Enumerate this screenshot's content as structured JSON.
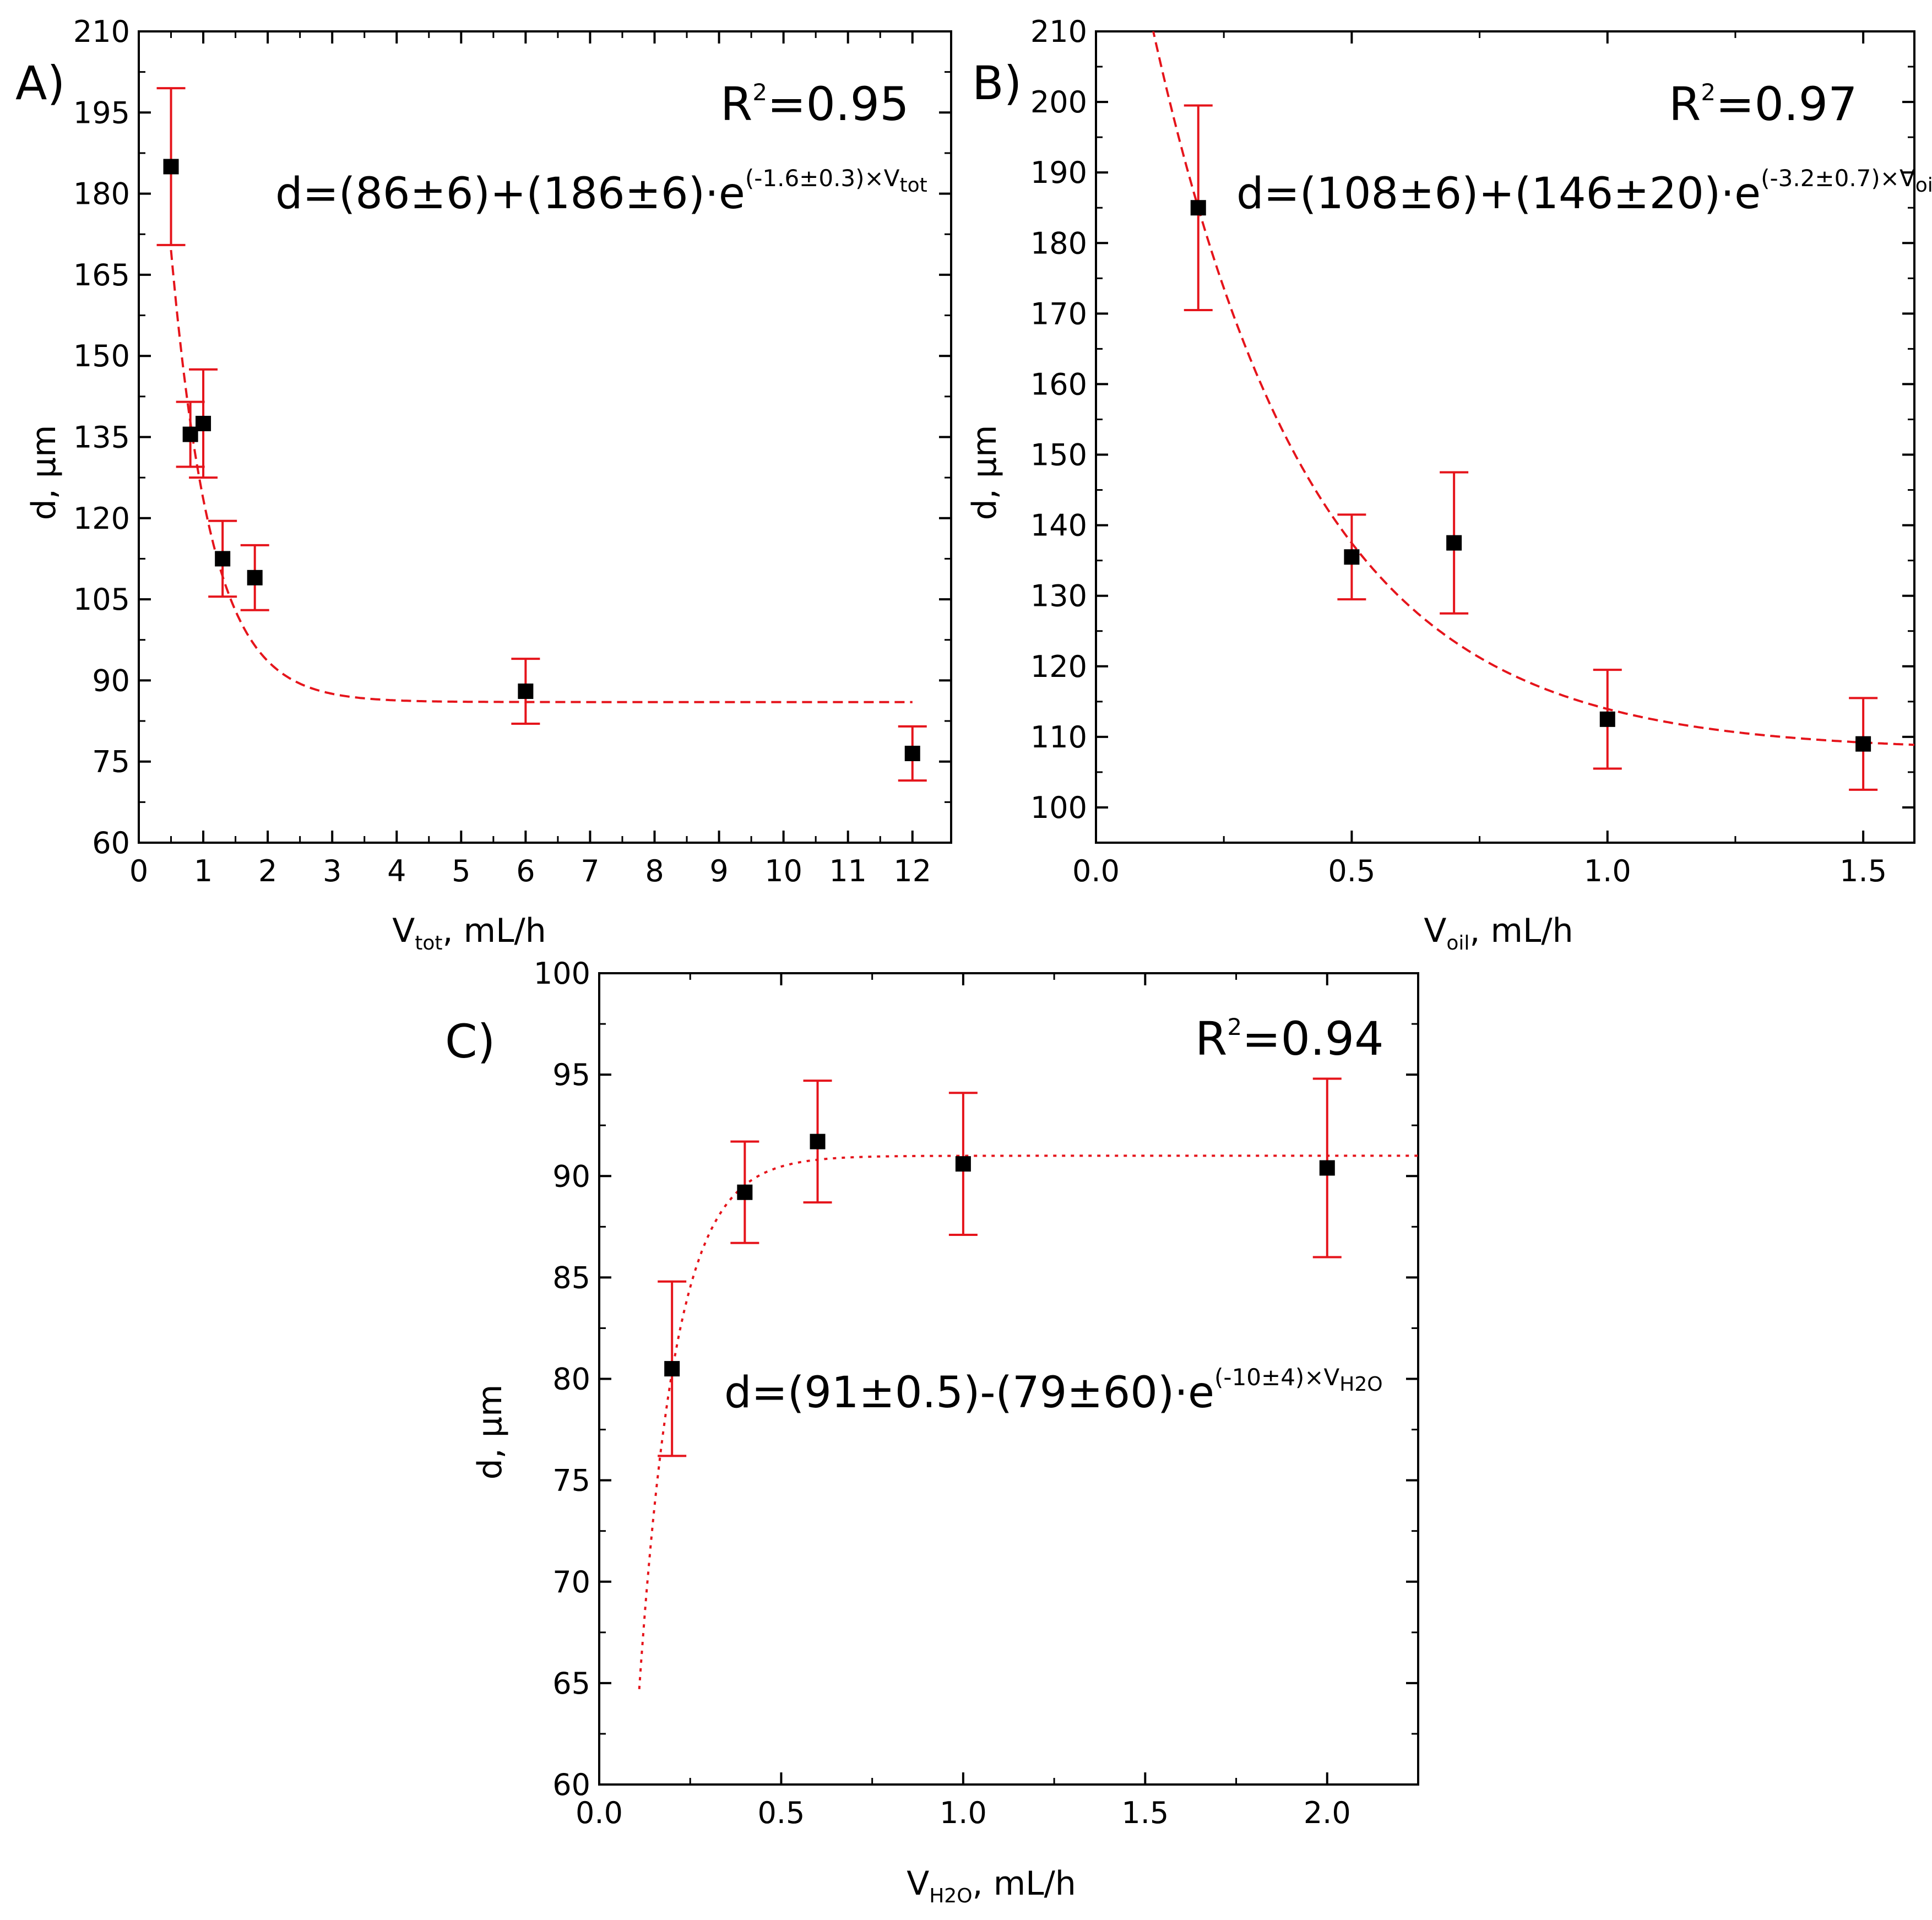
{
  "chart_data": [
    {
      "panel": "A)",
      "type": "scatter",
      "xlabel": {
        "main": "V",
        "sub": "tot",
        "rest": ", mL/h"
      },
      "ylabel": "d, µm",
      "xlim": [
        0,
        12.6
      ],
      "ylim": [
        60,
        210
      ],
      "xticks": [
        0,
        1,
        2,
        3,
        4,
        5,
        6,
        7,
        8,
        9,
        10,
        11,
        12
      ],
      "yticks": [
        60,
        75,
        90,
        105,
        120,
        135,
        150,
        165,
        180,
        195,
        210
      ],
      "series": [
        {
          "name": "data",
          "x": [
            0.5,
            0.8,
            1.0,
            1.3,
            1.8,
            6.0,
            12.0
          ],
          "y": [
            185,
            135.5,
            137.5,
            112.5,
            109,
            88,
            76.5
          ],
          "err": [
            14.5,
            6,
            10,
            7,
            6,
            6,
            5
          ]
        }
      ],
      "fit": {
        "style": "dashed",
        "kind": "exp_decay",
        "a": 86,
        "b": 186,
        "k": 1.6,
        "x_from": 0.5,
        "x_to": 12.0
      },
      "r2": {
        "prefix": "R",
        "sup": "2",
        "value": "=0.95"
      },
      "equation": {
        "base": "d=(86±6)+(186±6)·e",
        "exp": "(-1.6±0.3)×V",
        "exp_sub": "tot"
      }
    },
    {
      "panel": "B)",
      "type": "scatter",
      "xlabel": {
        "main": "V",
        "sub": "oil",
        "rest": ", mL/h"
      },
      "ylabel": "d, µm",
      "xlim": [
        0.0,
        1.6
      ],
      "ylim": [
        95,
        210
      ],
      "xticks": [
        "0.0",
        "0.5",
        "1.0",
        "1.5"
      ],
      "yticks": [
        100,
        110,
        120,
        130,
        140,
        150,
        160,
        170,
        180,
        190,
        200,
        210
      ],
      "series": [
        {
          "name": "data",
          "x": [
            0.2,
            0.5,
            0.7,
            1.0,
            1.5
          ],
          "y": [
            185,
            135.5,
            137.5,
            112.5,
            109
          ],
          "err": [
            14.5,
            6,
            10,
            7,
            6.5
          ]
        }
      ],
      "fit": {
        "style": "dashed",
        "kind": "exp_decay",
        "a": 108,
        "b": 146,
        "k": 3.2,
        "x_from": 0.02,
        "x_to": 1.6
      },
      "r2": {
        "prefix": "R",
        "sup": "2",
        "value": "=0.97"
      },
      "equation": {
        "base": "d=(108±6)+(146±20)·e",
        "exp": "(-3.2±0.7)×V",
        "exp_sub": "oil"
      }
    },
    {
      "panel": "C)",
      "type": "scatter",
      "xlabel": {
        "main": "V",
        "sub": "H2O",
        "rest": ", mL/h"
      },
      "ylabel": "d, µm",
      "xlim": [
        0.0,
        2.25
      ],
      "ylim": [
        60,
        100
      ],
      "xticks": [
        "0.0",
        "0.5",
        "1.0",
        "1.5",
        "2.0"
      ],
      "yticks": [
        60,
        65,
        70,
        75,
        80,
        85,
        90,
        95,
        100
      ],
      "series": [
        {
          "name": "data",
          "x": [
            0.2,
            0.4,
            0.6,
            1.0,
            2.0
          ],
          "y": [
            80.5,
            89.2,
            91.7,
            90.6,
            90.4
          ],
          "err": [
            4.3,
            2.5,
            3.0,
            3.5,
            4.4
          ]
        }
      ],
      "fit": {
        "style": "dotted",
        "kind": "exp_rise",
        "a": 91,
        "b": 79,
        "k": 10,
        "x_from": 0.11,
        "x_to": 2.25
      },
      "r2": {
        "prefix": "R",
        "sup": "2",
        "value": "=0.94"
      },
      "equation": {
        "base": "d=(91±0.5)-(79±60)·e",
        "exp": "(-10±4)×V",
        "exp_sub": "H2O"
      }
    }
  ]
}
